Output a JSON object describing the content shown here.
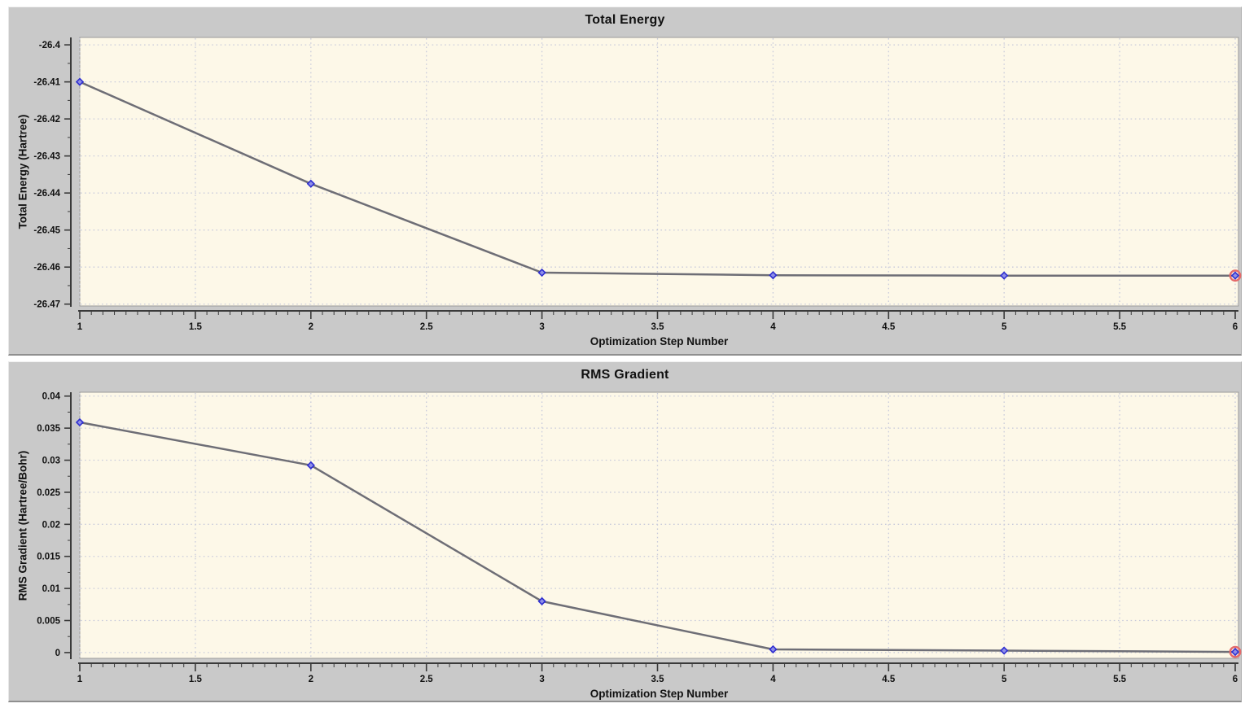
{
  "colors": {
    "page_bg": "#ffffff",
    "panel_bg": "#c9c9c9",
    "plot_bg": "#fdf8e8",
    "grid": "#c9cbdb",
    "axis": "#3a3a3a",
    "tick_text": "#111111",
    "line": "#6e6e76",
    "marker_stroke": "#2e2ed0",
    "marker_fill": "#8f8fe8",
    "highlight_ring": "#e56a6a",
    "plot_border": "#9a9a9a"
  },
  "chart_data": [
    {
      "type": "line",
      "title": "Total Energy",
      "xlabel": "Optimization Step Number",
      "ylabel": "Total Energy (Hartree)",
      "x": [
        1,
        2,
        3,
        4,
        5,
        6
      ],
      "y": [
        -26.41,
        -26.4375,
        -26.4615,
        -26.4622,
        -26.4623,
        -26.4623
      ],
      "xlim": [
        1,
        6
      ],
      "ylim": [
        -26.4705,
        -26.398
      ],
      "xticks": [
        1,
        1.5,
        2,
        2.5,
        3,
        3.5,
        4,
        4.5,
        5,
        5.5,
        6
      ],
      "xtick_labels": [
        "1",
        "1.5",
        "2",
        "2.5",
        "3",
        "3.5",
        "4",
        "4.5",
        "5",
        "5.5",
        "6"
      ],
      "x_minor_step": 0.05,
      "yticks": [
        -26.4,
        -26.41,
        -26.42,
        -26.43,
        -26.44,
        -26.45,
        -26.46,
        -26.47
      ],
      "ytick_labels": [
        "-26.4",
        "-26.41",
        "-26.42",
        "-26.43",
        "-26.44",
        "-26.45",
        "-26.46",
        "-26.47"
      ],
      "grid": true,
      "legend": "none",
      "final_point_highlighted": true
    },
    {
      "type": "line",
      "title": "RMS Gradient",
      "xlabel": "Optimization Step Number",
      "ylabel": "RMS Gradient (Hartree/Bohr)",
      "x": [
        1,
        2,
        3,
        4,
        5,
        6
      ],
      "y": [
        0.0359,
        0.0292,
        0.008,
        0.0005,
        0.0003,
        0.0001
      ],
      "xlim": [
        1,
        6
      ],
      "ylim": [
        -0.0009,
        0.0406
      ],
      "xticks": [
        1,
        1.5,
        2,
        2.5,
        3,
        3.5,
        4,
        4.5,
        5,
        5.5,
        6
      ],
      "xtick_labels": [
        "1",
        "1.5",
        "2",
        "2.5",
        "3",
        "3.5",
        "4",
        "4.5",
        "5",
        "5.5",
        "6"
      ],
      "x_minor_step": 0.05,
      "yticks": [
        0,
        0.005,
        0.01,
        0.015,
        0.02,
        0.025,
        0.03,
        0.035,
        0.04
      ],
      "ytick_labels": [
        "0",
        "0.005",
        "0.01",
        "0.015",
        "0.02",
        "0.025",
        "0.03",
        "0.035",
        "0.04"
      ],
      "grid": true,
      "legend": "none",
      "final_point_highlighted": true
    }
  ]
}
